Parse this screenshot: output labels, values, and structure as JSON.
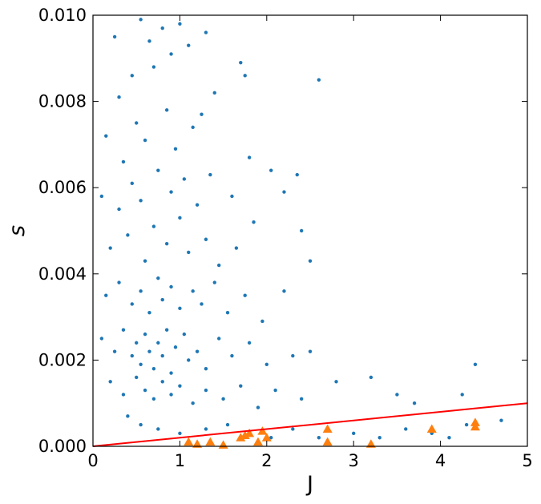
{
  "chart_data": {
    "type": "scatter",
    "title": "",
    "xlabel": "J",
    "ylabel": "s",
    "xlim": [
      0,
      5
    ],
    "ylim": [
      0,
      0.01
    ],
    "xticks": [
      "0",
      "1",
      "2",
      "3",
      "4",
      "5"
    ],
    "yticks": [
      "0.000",
      "0.002",
      "0.004",
      "0.006",
      "0.008",
      "0.010"
    ],
    "grid": false,
    "colors": {
      "blue_points": "#1f77b4",
      "orange_triangles": "#ff7f0e",
      "line": "#ff0000"
    },
    "series": [
      {
        "marker": "dot",
        "color": "#1f77b4",
        "points": [
          [
            0.25,
            0.0095
          ],
          [
            0.3,
            0.0081
          ],
          [
            0.45,
            0.0086
          ],
          [
            0.55,
            0.0099
          ],
          [
            0.65,
            0.0094
          ],
          [
            0.7,
            0.0088
          ],
          [
            0.8,
            0.0097
          ],
          [
            0.9,
            0.0091
          ],
          [
            1.0,
            0.0098
          ],
          [
            1.1,
            0.0093
          ],
          [
            1.3,
            0.0096
          ],
          [
            1.4,
            0.0082
          ],
          [
            0.15,
            0.0072
          ],
          [
            0.35,
            0.0066
          ],
          [
            0.5,
            0.0075
          ],
          [
            0.6,
            0.0071
          ],
          [
            0.85,
            0.0078
          ],
          [
            0.95,
            0.0069
          ],
          [
            1.15,
            0.0074
          ],
          [
            1.25,
            0.0077
          ],
          [
            1.7,
            0.0089
          ],
          [
            1.75,
            0.0086
          ],
          [
            2.6,
            0.0085
          ],
          [
            0.1,
            0.0058
          ],
          [
            0.3,
            0.0055
          ],
          [
            0.45,
            0.0061
          ],
          [
            0.55,
            0.0057
          ],
          [
            0.75,
            0.0064
          ],
          [
            0.9,
            0.0059
          ],
          [
            1.05,
            0.0062
          ],
          [
            1.2,
            0.0056
          ],
          [
            1.35,
            0.0063
          ],
          [
            1.6,
            0.0058
          ],
          [
            1.8,
            0.0067
          ],
          [
            2.05,
            0.0064
          ],
          [
            2.35,
            0.0063
          ],
          [
            2.2,
            0.0059
          ],
          [
            0.2,
            0.0046
          ],
          [
            0.4,
            0.0049
          ],
          [
            0.6,
            0.0043
          ],
          [
            0.7,
            0.0051
          ],
          [
            0.85,
            0.0047
          ],
          [
            1.0,
            0.0053
          ],
          [
            1.1,
            0.0045
          ],
          [
            1.3,
            0.0048
          ],
          [
            1.45,
            0.0042
          ],
          [
            1.65,
            0.0046
          ],
          [
            1.85,
            0.0052
          ],
          [
            2.4,
            0.005
          ],
          [
            2.5,
            0.0043
          ],
          [
            0.15,
            0.0035
          ],
          [
            0.3,
            0.0038
          ],
          [
            0.45,
            0.0033
          ],
          [
            0.55,
            0.0036
          ],
          [
            0.65,
            0.0031
          ],
          [
            0.75,
            0.0039
          ],
          [
            0.8,
            0.0034
          ],
          [
            0.9,
            0.0037
          ],
          [
            1.0,
            0.0032
          ],
          [
            1.15,
            0.0036
          ],
          [
            1.25,
            0.0033
          ],
          [
            1.4,
            0.0038
          ],
          [
            1.55,
            0.0031
          ],
          [
            1.75,
            0.0035
          ],
          [
            1.95,
            0.0029
          ],
          [
            2.2,
            0.0036
          ],
          [
            0.1,
            0.0025
          ],
          [
            0.25,
            0.0022
          ],
          [
            0.35,
            0.0027
          ],
          [
            0.45,
            0.0021
          ],
          [
            0.5,
            0.0024
          ],
          [
            0.55,
            0.0019
          ],
          [
            0.6,
            0.0026
          ],
          [
            0.65,
            0.0022
          ],
          [
            0.7,
            0.0018
          ],
          [
            0.75,
            0.0024
          ],
          [
            0.8,
            0.0021
          ],
          [
            0.85,
            0.0027
          ],
          [
            0.9,
            0.0017
          ],
          [
            0.95,
            0.0023
          ],
          [
            1.05,
            0.0026
          ],
          [
            1.1,
            0.002
          ],
          [
            1.2,
            0.0022
          ],
          [
            1.3,
            0.0018
          ],
          [
            1.45,
            0.0025
          ],
          [
            1.6,
            0.0021
          ],
          [
            1.8,
            0.0024
          ],
          [
            2.0,
            0.0019
          ],
          [
            2.3,
            0.0021
          ],
          [
            2.5,
            0.0022
          ],
          [
            0.2,
            0.0015
          ],
          [
            0.35,
            0.0012
          ],
          [
            0.5,
            0.0016
          ],
          [
            0.6,
            0.0013
          ],
          [
            0.7,
            0.0011
          ],
          [
            0.8,
            0.0015
          ],
          [
            0.9,
            0.0012
          ],
          [
            1.0,
            0.0014
          ],
          [
            1.15,
            0.001
          ],
          [
            1.3,
            0.0013
          ],
          [
            1.5,
            0.0011
          ],
          [
            1.7,
            0.0014
          ],
          [
            1.9,
            0.0009
          ],
          [
            2.1,
            0.0013
          ],
          [
            2.4,
            0.0011
          ],
          [
            2.8,
            0.0015
          ],
          [
            3.2,
            0.0016
          ],
          [
            3.5,
            0.0012
          ],
          [
            3.7,
            0.001
          ],
          [
            4.25,
            0.0012
          ],
          [
            4.4,
            0.0019
          ],
          [
            4.7,
            0.0006
          ],
          [
            4.3,
            0.0005
          ],
          [
            0.4,
            0.0007
          ],
          [
            0.55,
            0.0005
          ],
          [
            0.75,
            0.0004
          ],
          [
            1.0,
            0.0003
          ],
          [
            1.3,
            0.0004
          ],
          [
            1.55,
            0.0005
          ],
          [
            1.8,
            0.0003
          ],
          [
            2.05,
            0.0002
          ],
          [
            2.3,
            0.0004
          ],
          [
            2.6,
            0.0002
          ],
          [
            3.0,
            0.0003
          ],
          [
            3.3,
            0.0002
          ],
          [
            3.6,
            0.0004
          ],
          [
            3.9,
            0.0003
          ],
          [
            4.1,
            0.0002
          ]
        ]
      },
      {
        "marker": "triangle",
        "color": "#ff7f0e",
        "points": [
          [
            1.1,
            0.0001
          ],
          [
            1.2,
            5e-05
          ],
          [
            1.35,
            0.0001
          ],
          [
            1.5,
            3e-05
          ],
          [
            1.7,
            0.0002
          ],
          [
            1.75,
            0.00025
          ],
          [
            1.8,
            0.0003
          ],
          [
            1.9,
            0.0001
          ],
          [
            1.95,
            0.00035
          ],
          [
            2.0,
            0.0002
          ],
          [
            2.7,
            0.0004
          ],
          [
            2.7,
            0.0001
          ],
          [
            3.2,
            5e-05
          ],
          [
            3.9,
            0.0004
          ],
          [
            4.4,
            0.00055
          ],
          [
            4.4,
            0.00045
          ]
        ]
      }
    ],
    "line": {
      "color": "#ff0000",
      "points": [
        [
          0,
          0
        ],
        [
          5,
          0.001
        ]
      ]
    }
  }
}
